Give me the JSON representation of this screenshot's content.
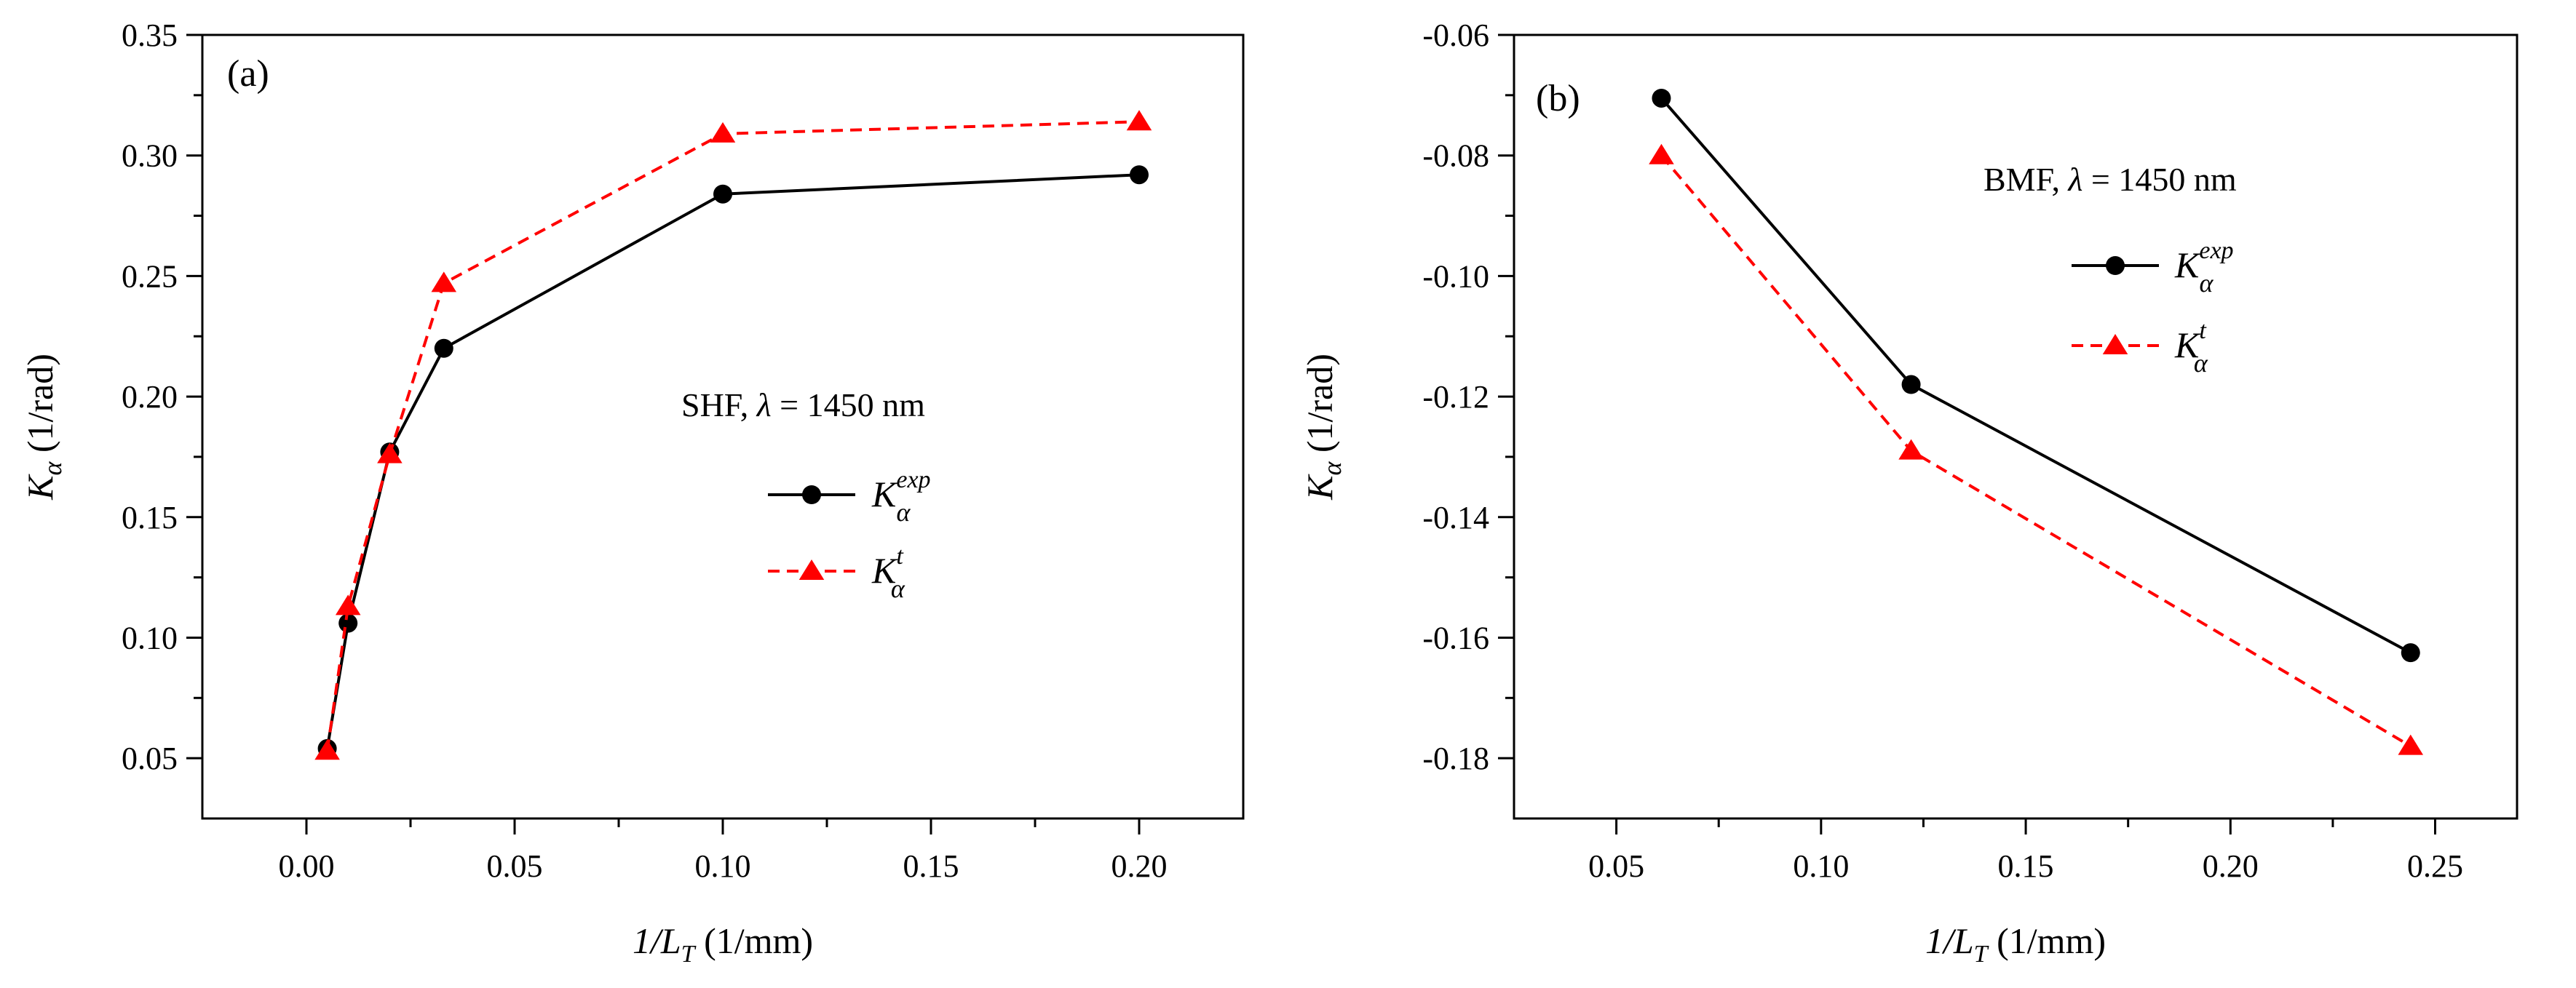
{
  "chart_data": [
    {
      "type": "line",
      "panel_label": "(a)",
      "annotation": "SHF, λ = 1450 nm",
      "annotation_parts": {
        "prefix": "SHF, ",
        "symbol": "λ",
        "suffix": " = 1450 nm"
      },
      "xlabel": "1/L_T (1/mm)",
      "xlabel_parts": {
        "main": "1/",
        "var": "L",
        "sub": "T",
        "unit": " (1/mm)"
      },
      "ylabel": "K_α (1/rad)",
      "ylabel_parts": {
        "var": "K",
        "sub": "α",
        "unit": " (1/rad)"
      },
      "xlim": [
        -0.025,
        0.225
      ],
      "ylim": [
        0.025,
        0.35
      ],
      "xticks": [
        0.0,
        0.05,
        0.1,
        0.15,
        0.2
      ],
      "xtick_labels": [
        "0.00",
        "0.05",
        "0.10",
        "0.15",
        "0.20"
      ],
      "yticks": [
        0.05,
        0.1,
        0.15,
        0.2,
        0.25,
        0.3,
        0.35
      ],
      "ytick_labels": [
        "0.05",
        "0.10",
        "0.15",
        "0.20",
        "0.25",
        "0.30",
        "0.35"
      ],
      "legend_position": "center-right",
      "series": [
        {
          "name": "K_α^exp",
          "legend_var": "K",
          "legend_sub": "α",
          "legend_sup": "exp",
          "color": "#000000",
          "dash": "solid",
          "marker": "circle",
          "x": [
            0.005,
            0.01,
            0.02,
            0.033,
            0.1,
            0.2
          ],
          "y": [
            0.054,
            0.106,
            0.177,
            0.22,
            0.284,
            0.292
          ]
        },
        {
          "name": "K_α^t",
          "legend_var": "K",
          "legend_sub": "α",
          "legend_sup": "t",
          "color": "#ff0000",
          "dash": "dashed",
          "marker": "triangle",
          "x": [
            0.005,
            0.01,
            0.02,
            0.033,
            0.1,
            0.2
          ],
          "y": [
            0.053,
            0.113,
            0.176,
            0.247,
            0.309,
            0.314
          ]
        }
      ]
    },
    {
      "type": "line",
      "panel_label": "(b)",
      "annotation": "BMF, λ = 1450 nm",
      "annotation_parts": {
        "prefix": "BMF, ",
        "symbol": "λ",
        "suffix": " = 1450 nm"
      },
      "xlabel": "1/L_T (1/mm)",
      "xlabel_parts": {
        "main": "1/",
        "var": "L",
        "sub": "T",
        "unit": " (1/mm)"
      },
      "ylabel": "K_α (1/rad)",
      "ylabel_parts": {
        "var": "K",
        "sub": "α",
        "unit": " (1/rad)"
      },
      "xlim": [
        0.025,
        0.27
      ],
      "ylim": [
        -0.19,
        -0.06
      ],
      "xticks": [
        0.05,
        0.1,
        0.15,
        0.2,
        0.25
      ],
      "xtick_labels": [
        "0.05",
        "0.10",
        "0.15",
        "0.20",
        "0.25"
      ],
      "yticks": [
        -0.18,
        -0.16,
        -0.14,
        -0.12,
        -0.1,
        -0.08,
        -0.06
      ],
      "ytick_labels": [
        "-0.18",
        "-0.16",
        "-0.14",
        "-0.12",
        "-0.10",
        "-0.08",
        "-0.06"
      ],
      "legend_position": "top-right",
      "series": [
        {
          "name": "K_α^exp",
          "legend_var": "K",
          "legend_sub": "α",
          "legend_sup": "exp",
          "color": "#000000",
          "dash": "solid",
          "marker": "circle",
          "x": [
            0.061,
            0.122,
            0.244
          ],
          "y": [
            -0.0705,
            -0.118,
            -0.1625
          ]
        },
        {
          "name": "K_α^t",
          "legend_var": "K",
          "legend_sub": "α",
          "legend_sup": "t",
          "color": "#ff0000",
          "dash": "dashed",
          "marker": "triangle",
          "x": [
            0.061,
            0.122,
            0.244
          ],
          "y": [
            -0.08,
            -0.129,
            -0.178
          ]
        }
      ]
    }
  ]
}
